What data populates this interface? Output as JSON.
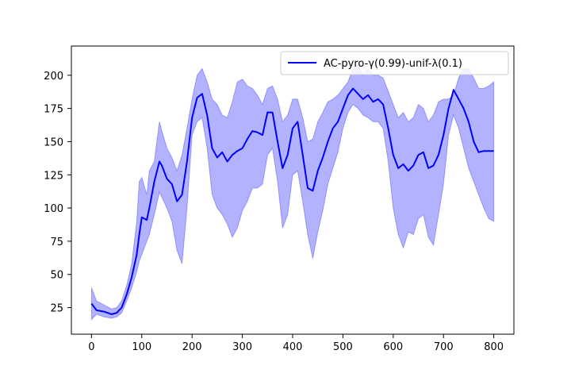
{
  "chart_data": {
    "type": "line",
    "title": "",
    "xlabel": "",
    "ylabel": "",
    "xlim": [
      -40,
      840
    ],
    "ylim": [
      5,
      222
    ],
    "xticks": [
      0,
      100,
      200,
      300,
      400,
      500,
      600,
      700,
      800
    ],
    "yticks": [
      25,
      50,
      75,
      100,
      125,
      150,
      175,
      200
    ],
    "grid": false,
    "legend": {
      "position": "top-right",
      "entries": [
        "AC-pyro-γ(0.99)-unif-λ(0.1)"
      ]
    },
    "colors": {
      "line": "#0000ff",
      "band": "#0000ff"
    },
    "series": [
      {
        "name": "AC-pyro-γ(0.99)-unif-λ(0.1)",
        "style": "line-with-band",
        "x": [
          0,
          10,
          25,
          40,
          50,
          60,
          70,
          80,
          90,
          95,
          100,
          110,
          115,
          125,
          135,
          140,
          150,
          160,
          170,
          180,
          190,
          200,
          210,
          220,
          230,
          240,
          250,
          260,
          270,
          280,
          290,
          300,
          310,
          320,
          330,
          340,
          350,
          360,
          370,
          380,
          390,
          400,
          410,
          420,
          430,
          440,
          450,
          460,
          470,
          480,
          490,
          500,
          510,
          520,
          530,
          540,
          550,
          560,
          570,
          580,
          590,
          600,
          610,
          620,
          630,
          640,
          650,
          660,
          670,
          680,
          690,
          700,
          710,
          720,
          730,
          740,
          750,
          760,
          770,
          780,
          790,
          800
        ],
        "y": [
          28,
          23,
          22,
          20,
          21,
          25,
          35,
          48,
          65,
          80,
          93,
          91,
          100,
          120,
          135,
          132,
          122,
          118,
          105,
          110,
          135,
          168,
          183,
          186,
          170,
          145,
          138,
          142,
          135,
          140,
          143,
          145,
          152,
          158,
          157,
          155,
          172,
          172,
          150,
          130,
          140,
          160,
          165,
          140,
          115,
          113,
          128,
          138,
          150,
          160,
          165,
          175,
          185,
          190,
          186,
          182,
          185,
          180,
          182,
          178,
          160,
          140,
          130,
          133,
          128,
          132,
          140,
          142,
          130,
          132,
          140,
          155,
          175,
          189,
          182,
          175,
          165,
          150,
          142,
          143,
          143,
          143
        ],
        "upper": [
          40,
          30,
          27,
          24,
          25,
          30,
          42,
          58,
          90,
          120,
          123,
          110,
          128,
          135,
          165,
          158,
          145,
          138,
          128,
          140,
          160,
          182,
          200,
          205,
          195,
          182,
          178,
          170,
          168,
          180,
          195,
          197,
          192,
          190,
          185,
          178,
          190,
          192,
          182,
          165,
          170,
          182,
          182,
          168,
          150,
          152,
          165,
          172,
          180,
          182,
          185,
          190,
          195,
          205,
          207,
          200,
          205,
          200,
          200,
          198,
          188,
          178,
          168,
          172,
          165,
          168,
          178,
          175,
          165,
          170,
          180,
          182,
          182,
          185,
          198,
          205,
          205,
          198,
          190,
          190,
          192,
          195
        ],
        "lower": [
          16,
          20,
          18,
          17,
          18,
          21,
          30,
          40,
          52,
          60,
          65,
          75,
          80,
          95,
          112,
          108,
          100,
          90,
          68,
          58,
          100,
          155,
          165,
          168,
          145,
          110,
          100,
          95,
          88,
          78,
          85,
          98,
          105,
          115,
          115,
          118,
          140,
          145,
          120,
          85,
          95,
          125,
          128,
          105,
          80,
          62,
          82,
          98,
          118,
          130,
          142,
          160,
          172,
          178,
          175,
          170,
          168,
          165,
          165,
          160,
          135,
          100,
          80,
          70,
          82,
          80,
          92,
          95,
          78,
          72,
          95,
          118,
          155,
          170,
          160,
          145,
          130,
          120,
          110,
          100,
          92,
          90
        ]
      }
    ]
  }
}
